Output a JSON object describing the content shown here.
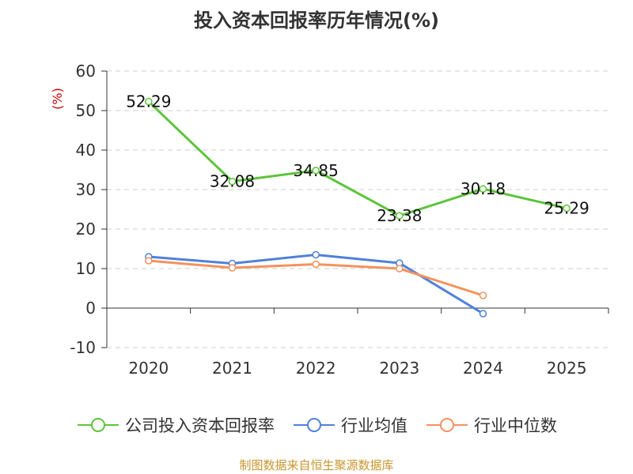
{
  "chart_data": {
    "type": "line",
    "title": "投入资本回报率历年情况(%)",
    "ylabel": "(%)",
    "categories": [
      "2020",
      "2021",
      "2022",
      "2023",
      "2024",
      "2025"
    ],
    "ylim": [
      -10,
      60
    ],
    "yticks": [
      -10,
      0,
      10,
      20,
      30,
      40,
      50,
      60
    ],
    "grid": true,
    "legend_position": "bottom",
    "series": [
      {
        "name": "公司投入资本回报率",
        "color": "#5cc43a",
        "values": [
          52.29,
          32.08,
          34.85,
          23.38,
          30.18,
          25.29
        ],
        "labels": [
          "52.29",
          "32.08",
          "34.85",
          "23.38",
          "30.18",
          "25.29"
        ]
      },
      {
        "name": "行业均值",
        "color": "#4f81d9",
        "values": [
          13.0,
          11.3,
          13.5,
          11.4,
          -1.4,
          null
        ]
      },
      {
        "name": "行业中位数",
        "color": "#f3925e",
        "values": [
          12.0,
          10.2,
          11.1,
          10.0,
          3.2,
          null
        ]
      }
    ]
  },
  "source": "制图数据来自恒生聚源数据库"
}
